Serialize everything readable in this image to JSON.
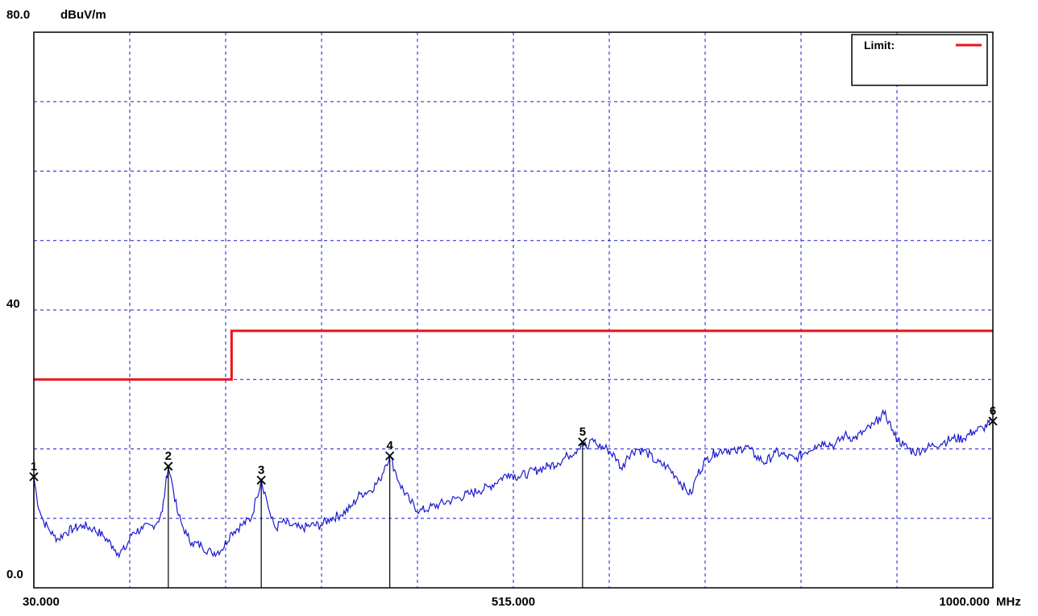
{
  "chart_data": {
    "type": "line",
    "y_unit": "dBuV/m",
    "x_unit": "MHz",
    "xlim": [
      30,
      1000
    ],
    "ylim": [
      0,
      80
    ],
    "y_tick_labels": [
      {
        "value": 80,
        "label": "80.0"
      },
      {
        "value": 40,
        "label": "40"
      },
      {
        "value": 0,
        "label": "0.0"
      }
    ],
    "x_tick_labels": [
      {
        "value": 30,
        "label": "30.000"
      },
      {
        "value": 515,
        "label": "515.000"
      },
      {
        "value": 1000,
        "label": "1000.000"
      }
    ],
    "grid": true,
    "grid_x_step": 97,
    "grid_y_step": 10,
    "legend": {
      "label": "Limit:",
      "placement": "top-right"
    },
    "colors": {
      "limit": "#e8141c",
      "trace": "#1a1ad0",
      "grid": "#1a1ad0",
      "axis": "#000000",
      "marker": "#000000"
    },
    "limit_line": {
      "name": "Limit:",
      "points": [
        [
          30,
          30
        ],
        [
          230,
          30
        ],
        [
          230,
          37
        ],
        [
          1000,
          37
        ]
      ]
    },
    "trace": {
      "points": [
        [
          30,
          16.0
        ],
        [
          33,
          13.0
        ],
        [
          36,
          11.0
        ],
        [
          40,
          9.5
        ],
        [
          45,
          8.5
        ],
        [
          50,
          7.5
        ],
        [
          55,
          7.0
        ],
        [
          60,
          7.8
        ],
        [
          70,
          8.5
        ],
        [
          80,
          9.0
        ],
        [
          90,
          8.5
        ],
        [
          100,
          7.5
        ],
        [
          110,
          6.0
        ],
        [
          115,
          5.0
        ],
        [
          122,
          5.5
        ],
        [
          130,
          8.0
        ],
        [
          140,
          8.5
        ],
        [
          150,
          9.0
        ],
        [
          155,
          9.5
        ],
        [
          160,
          11.0
        ],
        [
          163,
          14.5
        ],
        [
          166,
          17.5
        ],
        [
          170,
          15.0
        ],
        [
          175,
          11.0
        ],
        [
          180,
          9.0
        ],
        [
          185,
          7.5
        ],
        [
          190,
          6.5
        ],
        [
          200,
          6.0
        ],
        [
          210,
          5.0
        ],
        [
          220,
          5.5
        ],
        [
          230,
          8.0
        ],
        [
          240,
          9.0
        ],
        [
          250,
          10.0
        ],
        [
          255,
          13.0
        ],
        [
          260,
          15.5
        ],
        [
          265,
          13.0
        ],
        [
          270,
          10.0
        ],
        [
          275,
          8.5
        ],
        [
          280,
          9.5
        ],
        [
          290,
          9.0
        ],
        [
          300,
          8.5
        ],
        [
          310,
          9.0
        ],
        [
          320,
          9.0
        ],
        [
          330,
          10.0
        ],
        [
          340,
          10.5
        ],
        [
          350,
          11.5
        ],
        [
          360,
          13.5
        ],
        [
          370,
          14.0
        ],
        [
          380,
          15.5
        ],
        [
          385,
          17.5
        ],
        [
          390,
          19.0
        ],
        [
          395,
          17.0
        ],
        [
          400,
          15.0
        ],
        [
          410,
          12.5
        ],
        [
          420,
          11.0
        ],
        [
          430,
          11.5
        ],
        [
          440,
          12.0
        ],
        [
          450,
          12.5
        ],
        [
          460,
          13.0
        ],
        [
          470,
          13.5
        ],
        [
          480,
          14.0
        ],
        [
          490,
          14.5
        ],
        [
          500,
          15.5
        ],
        [
          510,
          16.5
        ],
        [
          520,
          16.0
        ],
        [
          530,
          16.5
        ],
        [
          540,
          17.0
        ],
        [
          550,
          17.5
        ],
        [
          560,
          18.0
        ],
        [
          570,
          19.0
        ],
        [
          580,
          20.0
        ],
        [
          585,
          21.0
        ],
        [
          590,
          20.0
        ],
        [
          595,
          21.5
        ],
        [
          600,
          20.5
        ],
        [
          610,
          20.0
        ],
        [
          620,
          18.5
        ],
        [
          625,
          17.0
        ],
        [
          630,
          19.0
        ],
        [
          640,
          20.0
        ],
        [
          650,
          19.5
        ],
        [
          660,
          18.0
        ],
        [
          670,
          17.5
        ],
        [
          680,
          16.0
        ],
        [
          690,
          14.0
        ],
        [
          695,
          13.5
        ],
        [
          700,
          16.0
        ],
        [
          710,
          18.5
        ],
        [
          720,
          19.5
        ],
        [
          730,
          20.0
        ],
        [
          740,
          19.5
        ],
        [
          750,
          20.5
        ],
        [
          760,
          19.0
        ],
        [
          770,
          18.0
        ],
        [
          780,
          19.5
        ],
        [
          790,
          19.0
        ],
        [
          800,
          18.5
        ],
        [
          810,
          19.5
        ],
        [
          820,
          20.5
        ],
        [
          830,
          21.0
        ],
        [
          840,
          20.5
        ],
        [
          850,
          22.0
        ],
        [
          860,
          21.5
        ],
        [
          870,
          22.5
        ],
        [
          880,
          23.5
        ],
        [
          885,
          24.5
        ],
        [
          890,
          25.0
        ],
        [
          895,
          24.0
        ],
        [
          900,
          22.0
        ],
        [
          910,
          20.5
        ],
        [
          920,
          19.5
        ],
        [
          930,
          20.0
        ],
        [
          940,
          20.5
        ],
        [
          950,
          21.0
        ],
        [
          960,
          21.5
        ],
        [
          970,
          21.5
        ],
        [
          980,
          22.5
        ],
        [
          990,
          23.0
        ],
        [
          1000,
          24.0
        ]
      ]
    },
    "markers": [
      {
        "label": "1",
        "x": 30,
        "y": 16.0
      },
      {
        "label": "2",
        "x": 166,
        "y": 17.5
      },
      {
        "label": "3",
        "x": 260,
        "y": 15.5
      },
      {
        "label": "4",
        "x": 390,
        "y": 19.0
      },
      {
        "label": "5",
        "x": 585,
        "y": 21.0
      },
      {
        "label": "6",
        "x": 1000,
        "y": 24.0
      }
    ]
  }
}
